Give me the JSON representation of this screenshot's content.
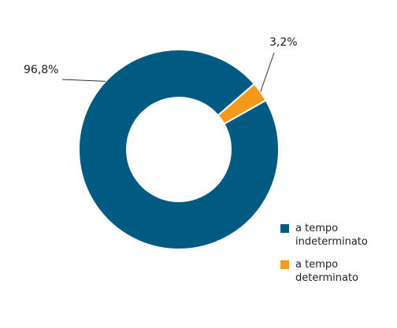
{
  "chart_data": {
    "type": "pie",
    "categories": [
      "a tempo indeterminato",
      "a tempo determinato"
    ],
    "values": [
      96.8,
      3.2
    ],
    "data_labels": [
      "96,8%",
      "3,2%"
    ],
    "colors": [
      "#005a82",
      "#f39a1d"
    ],
    "donut": true,
    "legend_position": "bottom-right"
  }
}
